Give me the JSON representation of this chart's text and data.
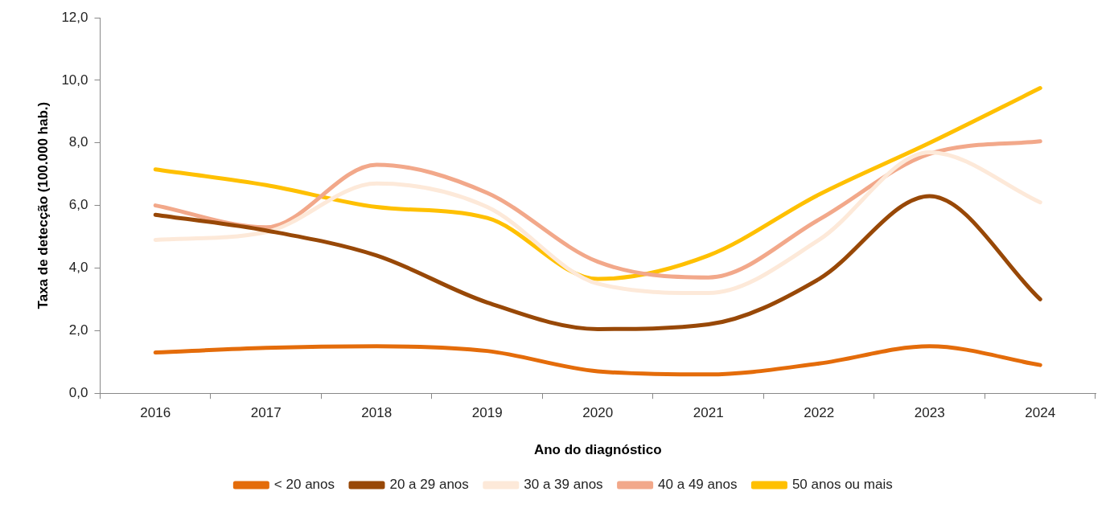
{
  "chart_data": {
    "type": "line",
    "xlabel": "Ano do diagnóstico",
    "ylabel": "Taxa de detecção (100.000 hab.)",
    "categories": [
      "2016",
      "2017",
      "2018",
      "2019",
      "2020",
      "2021",
      "2022",
      "2023",
      "2024"
    ],
    "series": [
      {
        "name": "< 20 anos",
        "color": "#e46c0a",
        "values": [
          1.3,
          1.45,
          1.5,
          1.35,
          0.7,
          0.6,
          0.95,
          1.5,
          0.9
        ]
      },
      {
        "name": "20 a 29 anos",
        "color": "#984807",
        "values": [
          5.7,
          5.2,
          4.4,
          2.9,
          2.05,
          2.2,
          3.65,
          6.3,
          3.0
        ]
      },
      {
        "name": "30 a 39 anos",
        "color": "#fde9d9",
        "values": [
          4.9,
          5.15,
          6.7,
          5.95,
          3.5,
          3.2,
          4.9,
          7.7,
          6.1
        ]
      },
      {
        "name": "40 a 49 anos",
        "color": "#f2a88a",
        "values": [
          6.0,
          5.3,
          7.3,
          6.4,
          4.2,
          3.7,
          5.55,
          7.65,
          8.05
        ]
      },
      {
        "name": "50 anos ou mais",
        "color": "#ffc000",
        "values": [
          7.15,
          6.65,
          5.95,
          5.6,
          3.65,
          4.4,
          6.35,
          8.0,
          9.75
        ]
      }
    ],
    "ylim": [
      0,
      12
    ],
    "yticks": [
      {
        "value": 0,
        "label": "0,0"
      },
      {
        "value": 2,
        "label": "2,0"
      },
      {
        "value": 4,
        "label": "4,0"
      },
      {
        "value": 6,
        "label": "6,0"
      },
      {
        "value": 8,
        "label": "8,0"
      },
      {
        "value": 10,
        "label": "10,0"
      },
      {
        "value": 12,
        "label": "12,0"
      }
    ],
    "grid": false,
    "legend": "bottom",
    "marker": "none",
    "line_style": "solid"
  }
}
